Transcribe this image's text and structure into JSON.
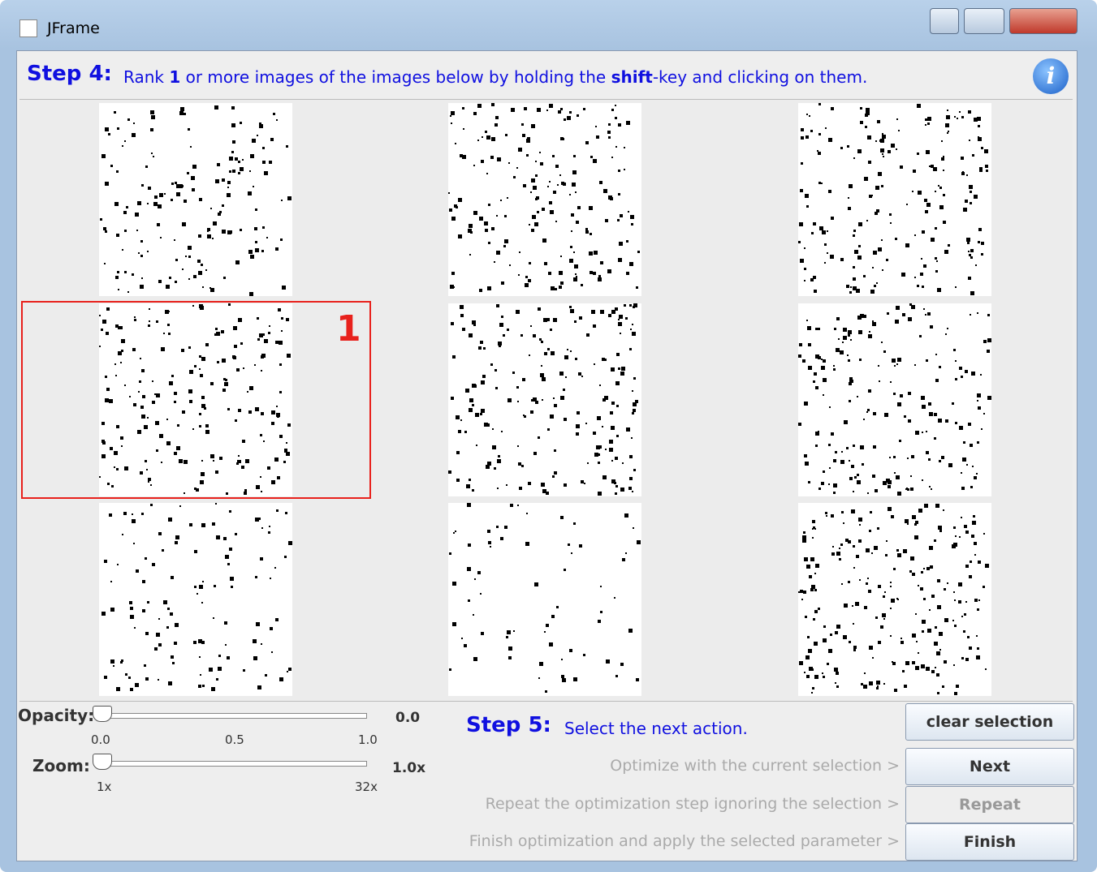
{
  "window": {
    "title": "JFrame"
  },
  "step4": {
    "label": "Step 4:",
    "instruction": [
      "Rank ",
      "1",
      " or more images of the images below by holding the ",
      "shift",
      "-key and clicking on them."
    ]
  },
  "selection": {
    "rank": "1"
  },
  "opacity": {
    "label": "Opacity:",
    "value": "0.0",
    "ticks": [
      "0.0",
      "0.5",
      "1.0"
    ]
  },
  "zoom": {
    "label": "Zoom:",
    "value": "1.0x",
    "ticks": [
      "1x",
      "32x"
    ]
  },
  "step5": {
    "label": "Step 5:",
    "instruction": "Select the next action."
  },
  "clear_button": "clear selection",
  "actions": [
    {
      "description": "Optimize with the current selection >",
      "button": "Next",
      "enabled": true
    },
    {
      "description": "Repeat the optimization step ignoring the selection >",
      "button": "Repeat",
      "enabled": false
    },
    {
      "description": "Finish optimization and apply the selected parameter >",
      "button": "Finish",
      "enabled": true
    }
  ]
}
